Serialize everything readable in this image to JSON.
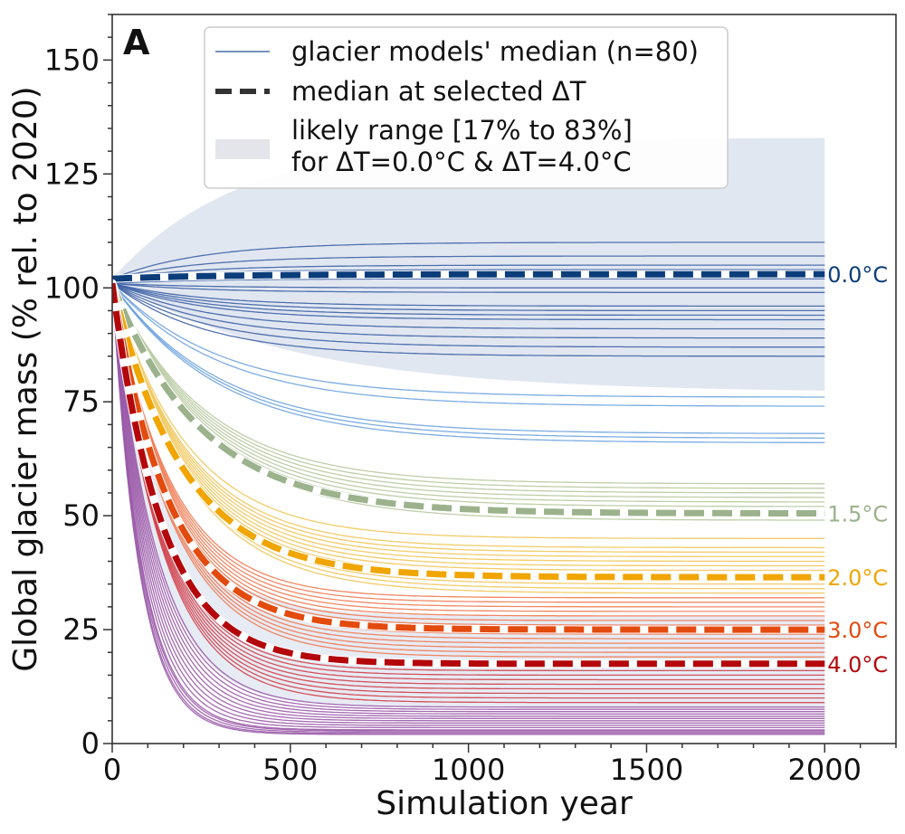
{
  "chart_data": {
    "type": "line",
    "panel_label": "A",
    "xlabel": "Simulation year",
    "ylabel": "Global glacier mass (% rel. to 2020)",
    "xlim": [
      0,
      2200
    ],
    "ylim": [
      0,
      160
    ],
    "xticks": [
      0,
      500,
      1000,
      1500,
      2000
    ],
    "yticks": [
      0,
      25,
      50,
      75,
      100,
      125,
      150
    ],
    "legend": {
      "position": "top",
      "entries": [
        "glacier models' median (n=80)",
        "median at selected ΔT",
        "likely range [17% to 83%]",
        "for ΔT=0.0°C & ΔT=4.0°C"
      ]
    },
    "likely_range_bands": [
      {
        "deltaT": "0.0°C",
        "lower_end": 77,
        "upper_end": 133,
        "color": "#c9d3e6"
      },
      {
        "deltaT": "4.0°C",
        "lower_end": 8,
        "upper_end": 28,
        "color": "#c9d3e6"
      }
    ],
    "selected_medians": [
      {
        "label": "0.0°C",
        "start": 102,
        "end": 103,
        "tau": 300,
        "color": "#0b3d7a"
      },
      {
        "label": "1.5°C",
        "end": 50.5,
        "tau": 250,
        "color": "#9bb28c"
      },
      {
        "label": "2.0°C",
        "end": 36.5,
        "tau": 200,
        "color": "#f0a500"
      },
      {
        "label": "3.0°C",
        "end": 25,
        "tau": 160,
        "color": "#e34a0d"
      },
      {
        "label": "4.0°C",
        "end": 17.5,
        "tau": 140,
        "color": "#b3070c"
      }
    ],
    "model_medians_end_values": [
      110,
      107,
      105,
      104,
      103,
      102,
      100,
      99,
      96,
      95,
      94,
      93,
      91,
      89,
      87,
      85,
      76,
      74,
      68,
      67,
      66,
      57,
      56,
      55,
      54,
      53,
      52,
      51,
      49,
      45,
      43,
      42,
      41,
      40,
      39,
      38,
      37,
      36,
      35,
      34,
      33,
      32,
      31,
      30,
      29,
      28,
      27,
      26,
      25,
      24,
      23,
      22,
      21,
      20,
      19,
      18,
      17,
      16,
      15,
      14,
      13,
      12,
      11,
      10,
      9,
      8,
      7.5,
      7,
      6.5,
      6,
      5.5,
      5,
      4.5,
      4,
      3.5,
      3,
      2.8,
      2.5,
      2.2,
      2
    ]
  }
}
